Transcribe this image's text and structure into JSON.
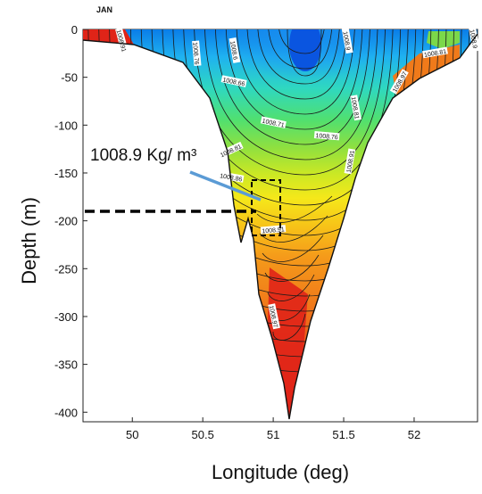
{
  "chart_data": {
    "type": "contour",
    "title": "JAN",
    "xlabel": "Longitude (deg)",
    "ylabel": "Depth (m)",
    "xlim": [
      49.65,
      52.45
    ],
    "ylim": [
      -410,
      0
    ],
    "xticks": [
      "50",
      "50.5",
      "51",
      "51.5",
      "52"
    ],
    "xtick_values": [
      50,
      50.5,
      51,
      51.5,
      52
    ],
    "yticks": [
      "0",
      "-50",
      "-100",
      "-150",
      "-200",
      "-250",
      "-300",
      "-350",
      "-400"
    ],
    "ytick_values": [
      0,
      -50,
      -100,
      -150,
      -200,
      -250,
      -300,
      -350,
      -400
    ],
    "contour_labels": [
      {
        "text": "1008.91",
        "lon": 49.92,
        "depth": -12,
        "angle": 75
      },
      {
        "text": "1008.76",
        "lon": 50.45,
        "depth": -25,
        "angle": 85
      },
      {
        "text": "1008.6",
        "lon": 50.72,
        "depth": -22,
        "angle": 80
      },
      {
        "text": "1008.66",
        "lon": 50.72,
        "depth": -55,
        "angle": 12
      },
      {
        "text": "1008.71",
        "lon": 51.0,
        "depth": -98,
        "angle": 12
      },
      {
        "text": "1008.81",
        "lon": 50.7,
        "depth": -127,
        "angle": -25
      },
      {
        "text": "1008.86",
        "lon": 50.7,
        "depth": -155,
        "angle": 10
      },
      {
        "text": "1008.91",
        "lon": 51.0,
        "depth": -210,
        "angle": -5
      },
      {
        "text": "1008.97",
        "lon": 51.0,
        "depth": -300,
        "angle": 78
      },
      {
        "text": "1008.76",
        "lon": 51.38,
        "depth": -112,
        "angle": 5
      },
      {
        "text": "1008.81",
        "lon": 51.58,
        "depth": -82,
        "angle": 80
      },
      {
        "text": "1008.91",
        "lon": 51.55,
        "depth": -138,
        "angle": -80
      },
      {
        "text": "1008.9",
        "lon": 51.52,
        "depth": -12,
        "angle": 80
      },
      {
        "text": "1008.97",
        "lon": 51.9,
        "depth": -55,
        "angle": -60
      },
      {
        "text": "1008.81",
        "lon": 52.15,
        "depth": -25,
        "angle": -10
      },
      {
        "text": "1008.9",
        "lon": 52.42,
        "depth": -10,
        "angle": 80
      }
    ],
    "annotation": {
      "text": "1008.9 Kg/ m³",
      "depth": -190
    }
  }
}
